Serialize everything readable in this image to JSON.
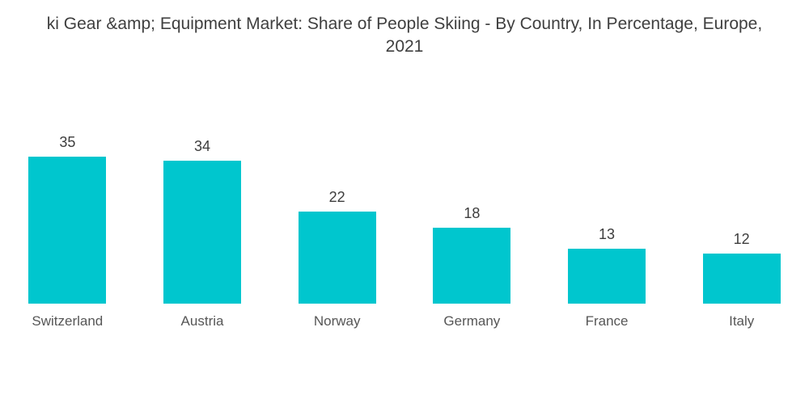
{
  "header": {
    "title_line1": "ki Gear &amp; Equipment Market: Share of People Skiing - By Country, In Percentage, Europe,",
    "title_line2": "2021"
  },
  "chart_data": {
    "type": "bar",
    "title": "ki Gear &amp; Equipment Market: Share of People Skiing - By Country, In Percentage, Europe, 2021",
    "categories": [
      "Switzerland",
      "Austria",
      "Norway",
      "Germany",
      "France",
      "Italy"
    ],
    "values": [
      35,
      34,
      22,
      18,
      13,
      12
    ],
    "xlabel": "",
    "ylabel": "",
    "ylim": [
      0,
      35
    ],
    "grid": false,
    "legend": "none",
    "bar_color": "#00C6CE",
    "value_label_color": "#3D3D3D",
    "category_label_color": "#565656",
    "title_color": "#3F3F3F",
    "background_color": "#FFFFFF"
  }
}
